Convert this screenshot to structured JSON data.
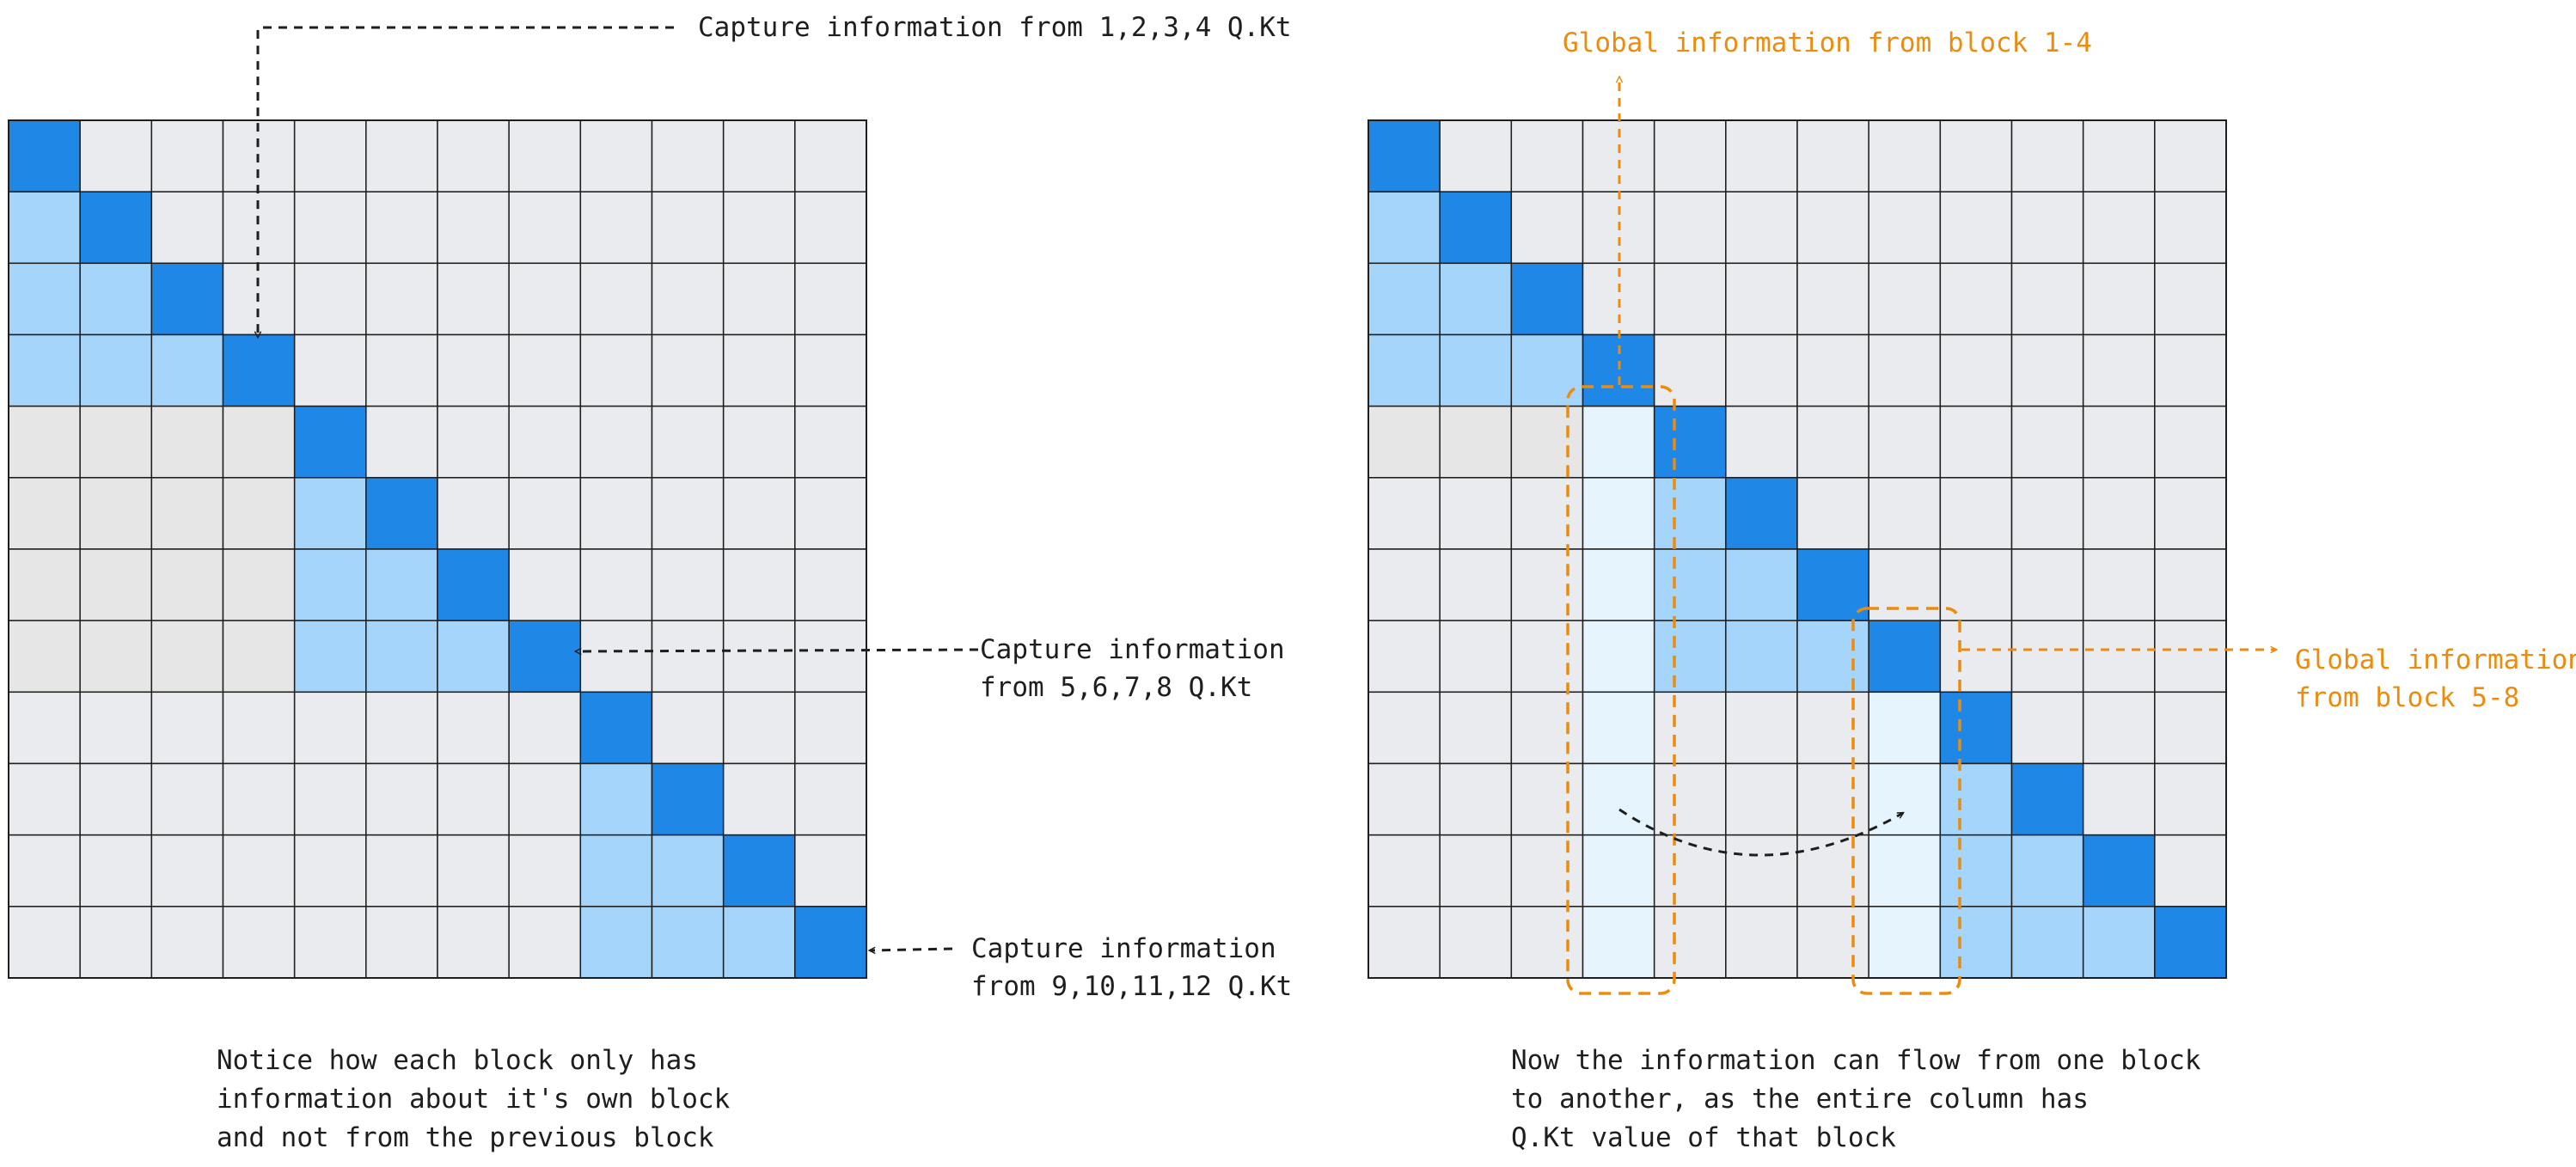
{
  "left_diagram": {
    "grid_size": 12,
    "block_size": 4,
    "labels": {
      "top": "Capture information from 1,2,3,4 Q.Kt",
      "mid_line1": "Capture information",
      "mid_line2": "from 5,6,7,8 Q.Kt",
      "bottom_line1": "Capture information",
      "bottom_line2": "from 9,10,11,12 Q.Kt"
    },
    "caption": [
      "Notice how each block only has",
      "information about it's own block",
      "and not from the previous block"
    ]
  },
  "right_diagram": {
    "grid_size": 12,
    "block_size": 4,
    "highlight_columns": [
      4,
      8
    ],
    "labels": {
      "top": "Global information from block 1-4",
      "right_line1": "Global information",
      "right_line2": "from block 5-8"
    },
    "caption": [
      "Now the information can flow from one block",
      "to another, as the entire column has",
      "Q.Kt value of that block"
    ]
  },
  "colors": {
    "cell_empty": "#e9ebef",
    "cell_muted": "#e6e6e6",
    "cell_diag": "#1f87e5",
    "cell_light": "#a6d5fb",
    "cell_column": "#e6f4fe",
    "grid_line": "#1e1e1e",
    "accent_orange": "#eb8c0e",
    "text": "#1e1e1e"
  }
}
